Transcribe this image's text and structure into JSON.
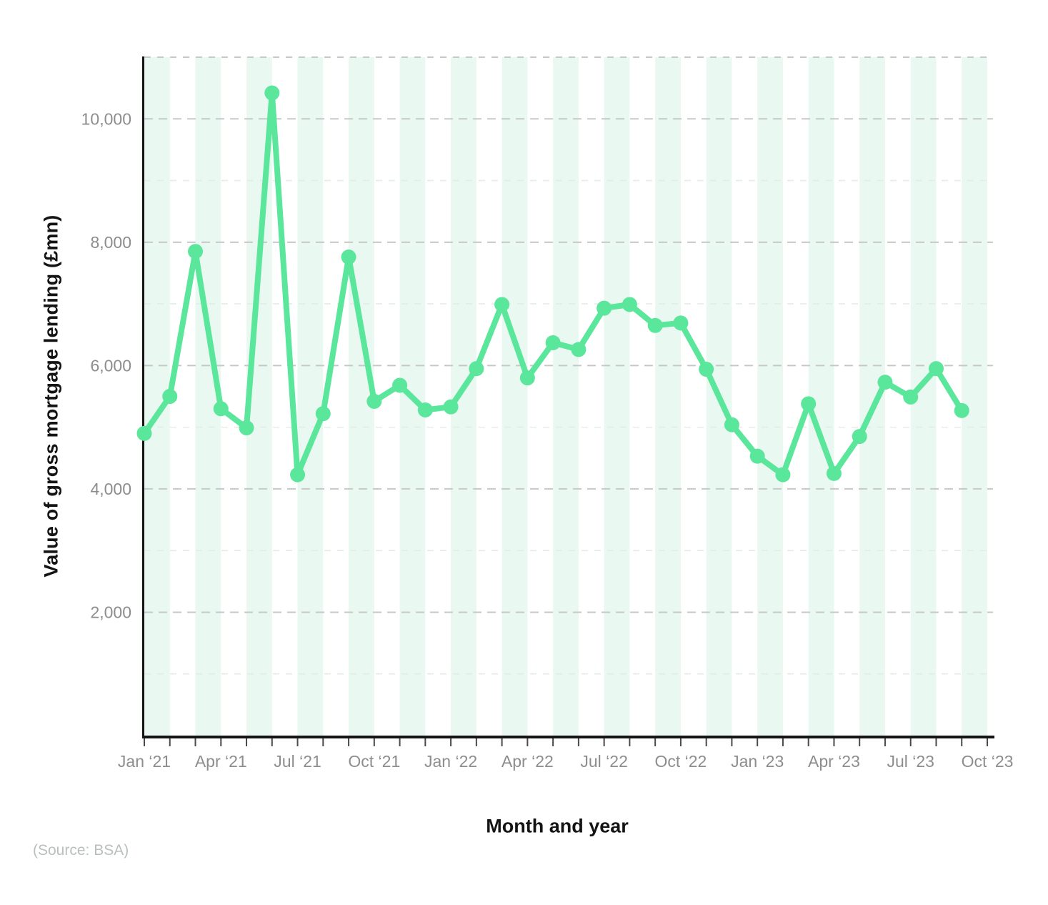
{
  "chart_data": {
    "type": "line",
    "title": "",
    "xlabel": "Month and year",
    "ylabel": "Value of gross mortgage lending (£mn)",
    "x": [
      "Jan ‘21",
      "Feb ‘21",
      "Mar ‘21",
      "Apr ‘21",
      "May ‘21",
      "Jun ‘21",
      "Jul ‘21",
      "Aug ‘21",
      "Sep ‘21",
      "Oct ‘21",
      "Nov ‘21",
      "Dec ‘21",
      "Jan ‘22",
      "Feb ‘22",
      "Mar ‘22",
      "Apr ‘22",
      "May ‘22",
      "Jun ‘22",
      "Jul ‘22",
      "Aug ‘22",
      "Sep ‘22",
      "Oct ‘22",
      "Nov ‘22",
      "Dec ‘22",
      "Jan ‘23",
      "Feb ‘23",
      "Mar ‘23",
      "Apr ‘23",
      "May ‘23",
      "Jun ‘23",
      "Jul ‘23",
      "Aug ‘23",
      "Sep ‘23"
    ],
    "values": [
      4900,
      5500,
      7850,
      5300,
      4990,
      10420,
      4230,
      5220,
      7760,
      5420,
      5680,
      5280,
      5330,
      5950,
      6990,
      5800,
      6370,
      6260,
      6930,
      6990,
      6650,
      6690,
      5940,
      5040,
      4530,
      4230,
      5380,
      4250,
      4850,
      5730,
      5490,
      5950,
      5270
    ],
    "x_tick_labels": [
      "Jan ‘21",
      "Apr ‘21",
      "Jul ‘21",
      "Oct ‘21",
      "Jan ‘22",
      "Apr ‘22",
      "Jul ‘22",
      "Oct ‘22",
      "Jan ‘23",
      "Apr ‘23",
      "Jul ‘23",
      "Oct ‘23"
    ],
    "y_ticks": [
      {
        "value": 2000,
        "label": "2,000"
      },
      {
        "value": 4000,
        "label": "4,000"
      },
      {
        "value": 6000,
        "label": "6,000"
      },
      {
        "value": 8000,
        "label": "8,000"
      },
      {
        "value": 10000,
        "label": "10,000"
      }
    ],
    "y_minor_gridlines": [
      1000,
      3000,
      5000,
      7000,
      9000,
      11000
    ],
    "ylim": [
      0,
      11000
    ],
    "grid": "horizontal-dashed",
    "legend_position": "none",
    "colors": {
      "line": "#5ae69b",
      "stripe": "#e9f8f0",
      "grid_major": "#c8c8c8",
      "grid_minor": "#e3ece6",
      "axis": "#151515",
      "tick": "#4a4a4a",
      "tick_label": "#8d8d8d",
      "title": "#141414",
      "source": "#b9c0bb"
    }
  },
  "source_note": "(Source: BSA)"
}
